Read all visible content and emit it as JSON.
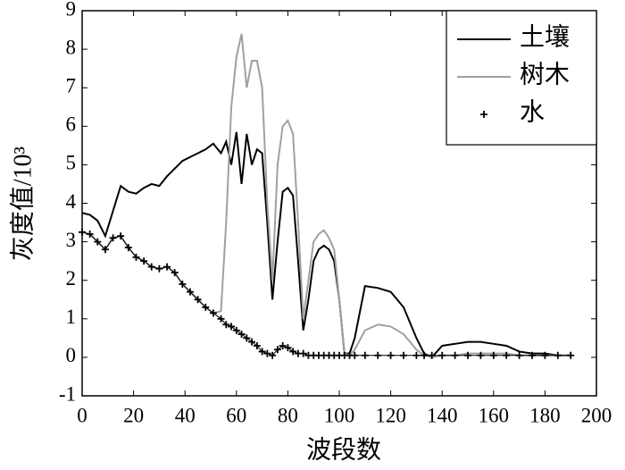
{
  "chart_data": {
    "type": "line",
    "xlabel": "波段数",
    "ylabel": "灰度值/10³",
    "x": [
      0,
      3,
      6,
      9,
      12,
      15,
      18,
      21,
      24,
      27,
      30,
      33,
      36,
      39,
      42,
      45,
      48,
      51,
      54,
      56,
      58,
      60,
      62,
      64,
      66,
      68,
      70,
      72,
      74,
      76,
      78,
      80,
      82,
      84,
      86,
      88,
      90,
      92,
      94,
      96,
      98,
      100,
      102,
      104,
      106,
      110,
      115,
      120,
      125,
      130,
      133,
      136,
      140,
      145,
      150,
      155,
      160,
      165,
      170,
      175,
      180,
      185,
      190
    ],
    "series": [
      {
        "name": "土壤",
        "color": "#000000",
        "style": "solid",
        "values": [
          3.75,
          3.7,
          3.55,
          3.15,
          3.8,
          4.45,
          4.3,
          4.25,
          4.4,
          4.5,
          4.45,
          4.7,
          4.9,
          5.1,
          5.2,
          5.3,
          5.4,
          5.55,
          5.3,
          5.6,
          5.0,
          5.85,
          4.5,
          5.8,
          5.0,
          5.4,
          5.3,
          3.5,
          1.5,
          3.0,
          4.3,
          4.4,
          4.2,
          2.5,
          0.7,
          1.5,
          2.5,
          2.8,
          2.9,
          2.8,
          2.5,
          1.5,
          0.1,
          0.1,
          0.5,
          1.85,
          1.8,
          1.7,
          1.3,
          0.5,
          0.1,
          0.0,
          0.3,
          0.35,
          0.4,
          0.4,
          0.35,
          0.3,
          0.15,
          0.1,
          0.1,
          0.05,
          0.05
        ]
      },
      {
        "name": "树木",
        "color": "#a0a0a0",
        "style": "solid",
        "values": [
          3.25,
          3.2,
          3.0,
          2.8,
          3.1,
          3.15,
          2.85,
          2.6,
          2.5,
          2.35,
          2.3,
          2.35,
          2.2,
          1.9,
          1.7,
          1.5,
          1.3,
          1.15,
          1.2,
          3.5,
          6.5,
          7.8,
          8.4,
          7.0,
          7.7,
          7.7,
          7.0,
          4.0,
          2.0,
          5.0,
          6.0,
          6.15,
          5.8,
          3.5,
          1.0,
          2.0,
          3.0,
          3.2,
          3.3,
          3.1,
          2.8,
          1.5,
          0.1,
          0.05,
          0.2,
          0.7,
          0.85,
          0.8,
          0.6,
          0.2,
          0.05,
          0.0,
          0.05,
          0.05,
          0.1,
          0.1,
          0.1,
          0.1,
          0.05,
          0.05,
          0.05,
          0.05,
          0.05
        ]
      },
      {
        "name": "水",
        "color": "#000000",
        "style": "plus",
        "values": [
          3.25,
          3.2,
          3.0,
          2.8,
          3.1,
          3.15,
          2.85,
          2.6,
          2.5,
          2.35,
          2.3,
          2.35,
          2.2,
          1.9,
          1.7,
          1.5,
          1.3,
          1.15,
          1.0,
          0.85,
          0.8,
          0.7,
          0.6,
          0.5,
          0.4,
          0.3,
          0.15,
          0.1,
          0.05,
          0.2,
          0.3,
          0.25,
          0.15,
          0.1,
          0.1,
          0.05,
          0.05,
          0.05,
          0.05,
          0.05,
          0.05,
          0.05,
          0.05,
          0.05,
          0.05,
          0.05,
          0.05,
          0.05,
          0.05,
          0.05,
          0.05,
          0.05,
          0.05,
          0.05,
          0.05,
          0.05,
          0.05,
          0.05,
          0.05,
          0.05,
          0.05,
          0.05,
          0.05
        ]
      }
    ],
    "xlim": [
      0,
      200
    ],
    "xticks": [
      0,
      20,
      40,
      60,
      80,
      100,
      120,
      140,
      160,
      180,
      200
    ],
    "ylim": [
      -1,
      9
    ],
    "yticks": [
      -1,
      0,
      1,
      2,
      3,
      4,
      5,
      6,
      7,
      8,
      9
    ],
    "grid": false,
    "legend": "upper right"
  }
}
